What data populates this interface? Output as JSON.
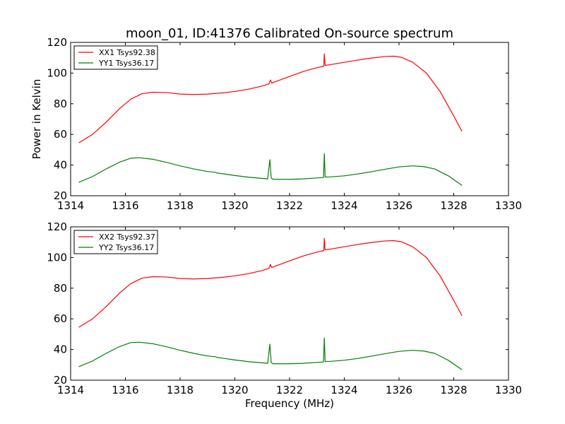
{
  "figure_title": "moon_01, ID:41376 Calibrated On-source spectrum",
  "chart_data": [
    {
      "type": "line",
      "title": "moon_01, ID:41376 Calibrated On-source spectrum",
      "xlabel": "",
      "ylabel": "Power in Kelvin",
      "xlim": [
        1314,
        1330
      ],
      "ylim": [
        20,
        120
      ],
      "xticks": [
        1314,
        1316,
        1318,
        1320,
        1322,
        1324,
        1326,
        1328,
        1330
      ],
      "yticks": [
        20,
        40,
        60,
        80,
        100,
        120
      ],
      "legend_position": "top-left",
      "grid": false,
      "series": [
        {
          "name": "XX1 Tsys92.38",
          "color": "#ff0000",
          "points": [
            [
              1314.3,
              54.5
            ],
            [
              1314.8,
              60
            ],
            [
              1315.3,
              68
            ],
            [
              1315.8,
              77
            ],
            [
              1316.2,
              83
            ],
            [
              1316.6,
              86.5
            ],
            [
              1317,
              87.5
            ],
            [
              1317.5,
              87.3
            ],
            [
              1318,
              86.3
            ],
            [
              1318.5,
              86
            ],
            [
              1319,
              86.3
            ],
            [
              1319.5,
              87
            ],
            [
              1320,
              88
            ],
            [
              1320.5,
              89.5
            ],
            [
              1321,
              91.5
            ],
            [
              1321.25,
              93
            ],
            [
              1321.3,
              95.5
            ],
            [
              1321.35,
              93.5
            ],
            [
              1321.5,
              94.5
            ],
            [
              1322,
              97.8
            ],
            [
              1322.5,
              101
            ],
            [
              1323,
              103.5
            ],
            [
              1323.25,
              104.5
            ],
            [
              1323.27,
              112.5
            ],
            [
              1323.3,
              105
            ],
            [
              1323.5,
              105.5
            ],
            [
              1324,
              107
            ],
            [
              1324.5,
              108.5
            ],
            [
              1325,
              109.8
            ],
            [
              1325.5,
              110.8
            ],
            [
              1325.8,
              111
            ],
            [
              1326.1,
              110.2
            ],
            [
              1326.5,
              107
            ],
            [
              1327,
              100
            ],
            [
              1327.5,
              88
            ],
            [
              1328,
              72
            ],
            [
              1328.3,
              62
            ]
          ]
        },
        {
          "name": "YY1 Tsys36.17",
          "color": "#008000",
          "points": [
            [
              1314.3,
              28.8
            ],
            [
              1314.8,
              32.5
            ],
            [
              1315.3,
              37.5
            ],
            [
              1315.8,
              42
            ],
            [
              1316.2,
              44.5
            ],
            [
              1316.5,
              44.8
            ],
            [
              1317,
              43.8
            ],
            [
              1317.5,
              41.8
            ],
            [
              1318,
              39.5
            ],
            [
              1318.5,
              37.5
            ],
            [
              1319,
              35.8
            ],
            [
              1319.3,
              35.3
            ],
            [
              1319.35,
              34.8
            ],
            [
              1319.5,
              34.5
            ],
            [
              1320,
              33.2
            ],
            [
              1320.5,
              32.1
            ],
            [
              1321,
              31.3
            ],
            [
              1321.2,
              31
            ],
            [
              1321.28,
              43.5
            ],
            [
              1321.33,
              31.5
            ],
            [
              1321.4,
              30.7
            ],
            [
              1322,
              30.7
            ],
            [
              1322.5,
              31
            ],
            [
              1323,
              31.6
            ],
            [
              1323.24,
              31.9
            ],
            [
              1323.27,
              47.5
            ],
            [
              1323.3,
              32.2
            ],
            [
              1323.5,
              32.3
            ],
            [
              1324,
              33
            ],
            [
              1324.5,
              34.2
            ],
            [
              1325,
              35.7
            ],
            [
              1325.5,
              37.3
            ],
            [
              1326,
              38.8
            ],
            [
              1326.5,
              39.5
            ],
            [
              1326.9,
              39
            ],
            [
              1327.3,
              37.5
            ],
            [
              1327.8,
              33
            ],
            [
              1328.3,
              26.8
            ]
          ]
        }
      ]
    },
    {
      "type": "line",
      "title": "",
      "xlabel": "Frequency (MHz)",
      "ylabel": "",
      "xlim": [
        1314,
        1330
      ],
      "ylim": [
        20,
        120
      ],
      "xticks": [
        1314,
        1316,
        1318,
        1320,
        1322,
        1324,
        1326,
        1328,
        1330
      ],
      "yticks": [
        20,
        40,
        60,
        80,
        100,
        120
      ],
      "legend_position": "top-left",
      "grid": false,
      "series": [
        {
          "name": "XX2 Tsys92.37",
          "color": "#ff0000",
          "points": [
            [
              1314.3,
              54.5
            ],
            [
              1314.8,
              60
            ],
            [
              1315.3,
              68
            ],
            [
              1315.8,
              77
            ],
            [
              1316.2,
              83
            ],
            [
              1316.6,
              86.5
            ],
            [
              1317,
              87.5
            ],
            [
              1317.5,
              87.3
            ],
            [
              1318,
              86.3
            ],
            [
              1318.5,
              86
            ],
            [
              1319,
              86.3
            ],
            [
              1319.5,
              87
            ],
            [
              1320,
              88
            ],
            [
              1320.5,
              89.5
            ],
            [
              1321,
              91.5
            ],
            [
              1321.25,
              93
            ],
            [
              1321.3,
              95.5
            ],
            [
              1321.35,
              93.5
            ],
            [
              1321.5,
              94.5
            ],
            [
              1322,
              97.8
            ],
            [
              1322.5,
              101
            ],
            [
              1323,
              103.5
            ],
            [
              1323.25,
              104.5
            ],
            [
              1323.27,
              112.5
            ],
            [
              1323.3,
              105
            ],
            [
              1323.5,
              105.5
            ],
            [
              1324,
              107
            ],
            [
              1324.5,
              108.5
            ],
            [
              1325,
              109.8
            ],
            [
              1325.5,
              110.8
            ],
            [
              1325.8,
              111
            ],
            [
              1326.1,
              110.2
            ],
            [
              1326.5,
              107
            ],
            [
              1327,
              100
            ],
            [
              1327.5,
              88
            ],
            [
              1328,
              72
            ],
            [
              1328.3,
              62
            ]
          ]
        },
        {
          "name": "YY2 Tsys36.17",
          "color": "#008000",
          "points": [
            [
              1314.3,
              28.8
            ],
            [
              1314.8,
              32.5
            ],
            [
              1315.3,
              37.5
            ],
            [
              1315.8,
              42
            ],
            [
              1316.2,
              44.5
            ],
            [
              1316.5,
              44.8
            ],
            [
              1317,
              43.8
            ],
            [
              1317.5,
              41.8
            ],
            [
              1318,
              39.5
            ],
            [
              1318.5,
              37.5
            ],
            [
              1319,
              35.8
            ],
            [
              1319.3,
              35.3
            ],
            [
              1319.35,
              34.8
            ],
            [
              1319.5,
              34.5
            ],
            [
              1320,
              33.2
            ],
            [
              1320.5,
              32.1
            ],
            [
              1321,
              31.3
            ],
            [
              1321.2,
              31
            ],
            [
              1321.28,
              43.5
            ],
            [
              1321.33,
              31.5
            ],
            [
              1321.4,
              30.7
            ],
            [
              1322,
              30.7
            ],
            [
              1322.5,
              31
            ],
            [
              1323,
              31.6
            ],
            [
              1323.24,
              31.9
            ],
            [
              1323.27,
              47.5
            ],
            [
              1323.3,
              32.2
            ],
            [
              1323.5,
              32.3
            ],
            [
              1324,
              33
            ],
            [
              1324.5,
              34.2
            ],
            [
              1325,
              35.7
            ],
            [
              1325.5,
              37.3
            ],
            [
              1326,
              38.8
            ],
            [
              1326.5,
              39.5
            ],
            [
              1326.9,
              39
            ],
            [
              1327.3,
              37.5
            ],
            [
              1327.8,
              33
            ],
            [
              1328.3,
              26.8
            ]
          ]
        }
      ]
    }
  ]
}
